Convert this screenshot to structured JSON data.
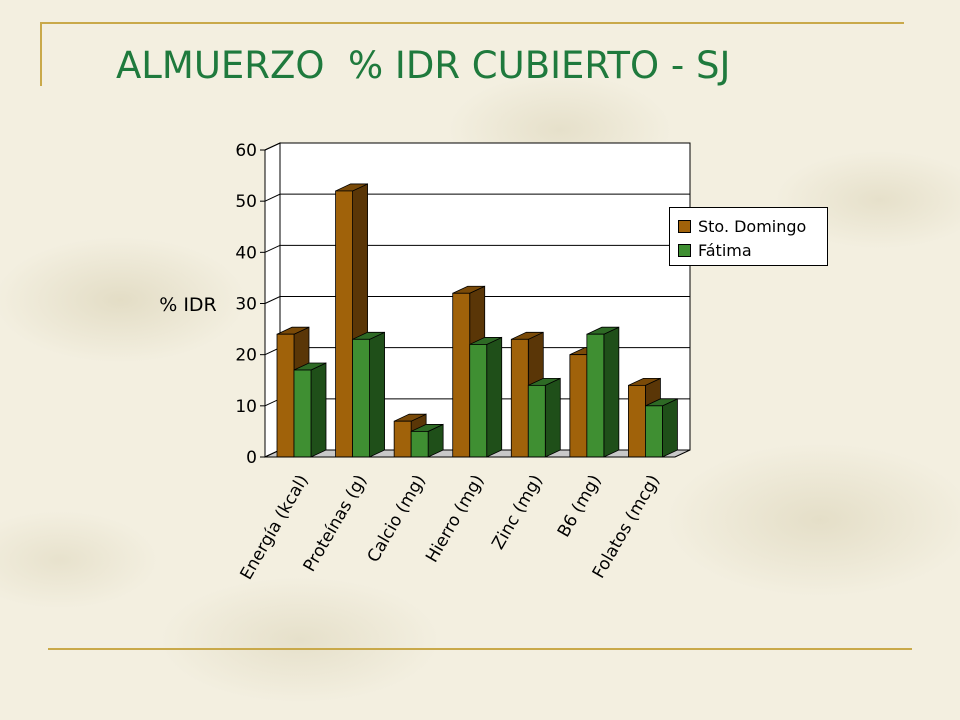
{
  "slide": {
    "title": "ALMUERZO  % IDR CUBIERTO - SJ"
  },
  "colors": {
    "title": "#1f7a3d",
    "frame": "#c9a94a",
    "series_front": [
      "#a0620a",
      "#3f8f32"
    ],
    "series_side": [
      "#5a3607",
      "#1f4f19"
    ],
    "series_top": [
      "#7a4a08",
      "#2e6a25"
    ]
  },
  "chart_data": {
    "type": "bar",
    "title": "",
    "ylabel": "% IDR",
    "xlabel": "",
    "ylim": [
      0,
      60
    ],
    "yticks": [
      "0",
      "10",
      "20",
      "30",
      "40",
      "50",
      "60"
    ],
    "grid": true,
    "legend_position": "right",
    "categories": [
      "Energía (kcal)",
      "Proteínas (g)",
      "Calcio (mg)",
      "Hierro (mg)",
      "Zinc (mg)",
      "B6 (mg)",
      "Folatos (mcg)"
    ],
    "series": [
      {
        "name": "Sto. Domingo",
        "values": [
          24,
          52,
          7,
          32,
          23,
          20,
          14
        ]
      },
      {
        "name": "Fátima",
        "values": [
          17,
          23,
          5,
          22,
          14,
          24,
          10
        ]
      }
    ]
  }
}
